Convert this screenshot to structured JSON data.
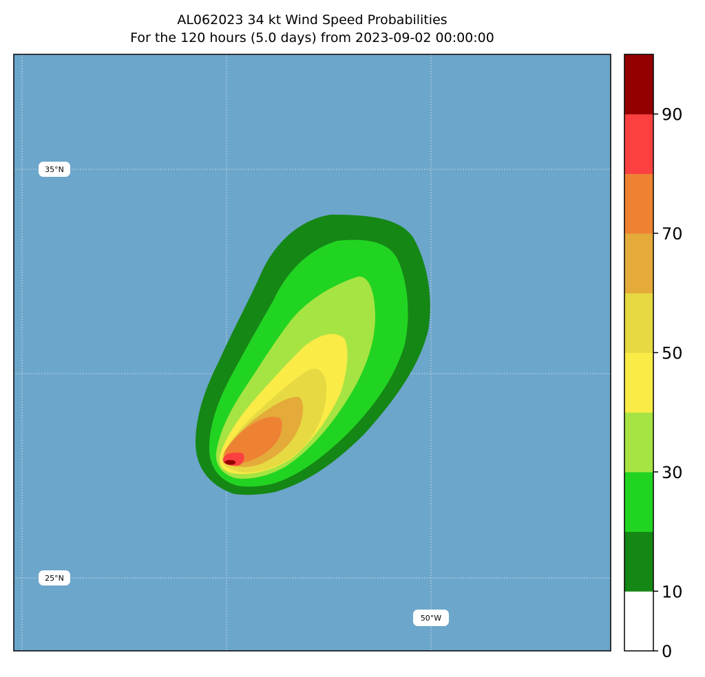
{
  "title": {
    "line1": "AL062023 34 kt Wind Speed Probabilities",
    "line2": "For the 120 hours (5.0 days) from 2023-09-02 00:00:00"
  },
  "map": {
    "ocean_color": "#6ca6cb",
    "gridline_color": "#d0dbe4",
    "grid_labels": [
      {
        "id": "lat-35",
        "text": "35°N"
      },
      {
        "id": "lat-25",
        "text": "25°N"
      },
      {
        "id": "lon-50",
        "text": "50°W"
      }
    ]
  },
  "colorbar": {
    "levels": [
      0,
      10,
      20,
      30,
      40,
      50,
      60,
      70,
      80,
      90,
      100
    ],
    "colors": [
      "#ffffff",
      "#158715",
      "#22d422",
      "#a6e443",
      "#faeb46",
      "#e6d942",
      "#e4aa3a",
      "#ee8233",
      "#fa4040",
      "#940000",
      "#8126d7"
    ],
    "tick_labels": [
      "0",
      "10",
      "30",
      "50",
      "70",
      "90"
    ]
  }
}
